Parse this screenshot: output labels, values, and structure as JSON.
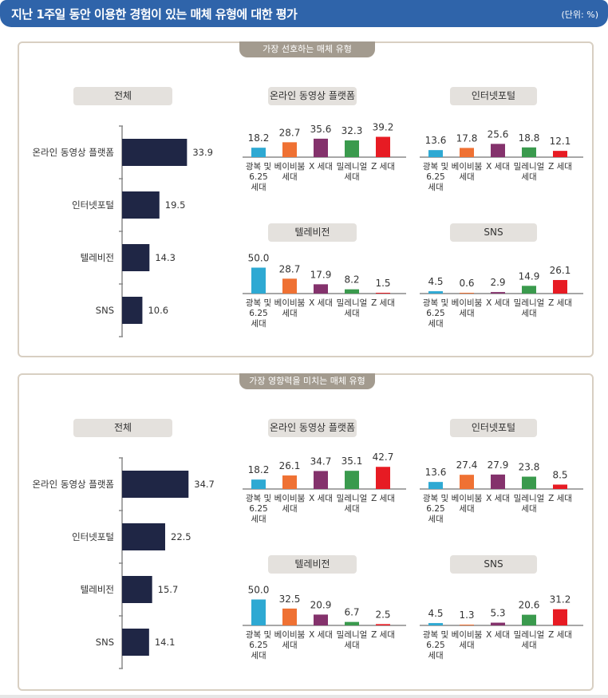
{
  "header": {
    "title": "지난 1주일 동안 이용한 경험이 있는 매체 유형에 대한 평가",
    "unit": "(단위: %)"
  },
  "colors": {
    "header": "#2f64aa",
    "overall_bar": "#1f2645",
    "gen_colors": [
      "#2ea9d3",
      "#ef7133",
      "#84326c",
      "#3a9a4d",
      "#e71b23"
    ]
  },
  "chart_data": [
    {
      "type": "bar",
      "section": "가장 선호하는 매체 유형",
      "overall": {
        "title": "전체",
        "categories": [
          "온라인 동영상 플랫폼",
          "인터넷포털",
          "텔레비전",
          "SNS"
        ],
        "values": [
          33.9,
          19.5,
          14.3,
          10.6
        ]
      },
      "generation_categories": [
        "광복 및\n6.25\n세대",
        "베이비붐\n세대",
        "X 세대",
        "밀레니얼\n세대",
        "Z 세대"
      ],
      "by_generation": [
        {
          "title": "온라인 동영상 플랫폼",
          "values": [
            18.2,
            28.7,
            35.6,
            32.3,
            39.2
          ]
        },
        {
          "title": "인터넷포털",
          "values": [
            13.6,
            17.8,
            25.6,
            18.8,
            12.1
          ]
        },
        {
          "title": "텔레비전",
          "values": [
            50.0,
            28.7,
            17.9,
            8.2,
            1.5
          ]
        },
        {
          "title": "SNS",
          "values": [
            4.5,
            0.6,
            2.9,
            14.9,
            26.1
          ]
        }
      ]
    },
    {
      "type": "bar",
      "section": "가장 영향력을 미치는 매체 유형",
      "overall": {
        "title": "전체",
        "categories": [
          "온라인 동영상 플랫폼",
          "인터넷포털",
          "텔레비전",
          "SNS"
        ],
        "values": [
          34.7,
          22.5,
          15.7,
          14.1
        ]
      },
      "generation_categories": [
        "광복 및\n6.25\n세대",
        "베이비붐\n세대",
        "X 세대",
        "밀레니얼\n세대",
        "Z 세대"
      ],
      "by_generation": [
        {
          "title": "온라인 동영상 플랫폼",
          "values": [
            18.2,
            26.1,
            34.7,
            35.1,
            42.7
          ]
        },
        {
          "title": "인터넷포털",
          "values": [
            13.6,
            27.4,
            27.9,
            23.8,
            8.5
          ]
        },
        {
          "title": "텔레비전",
          "values": [
            50.0,
            32.5,
            20.9,
            6.7,
            2.5
          ]
        },
        {
          "title": "SNS",
          "values": [
            4.5,
            1.3,
            5.3,
            20.6,
            31.2
          ]
        }
      ]
    }
  ]
}
